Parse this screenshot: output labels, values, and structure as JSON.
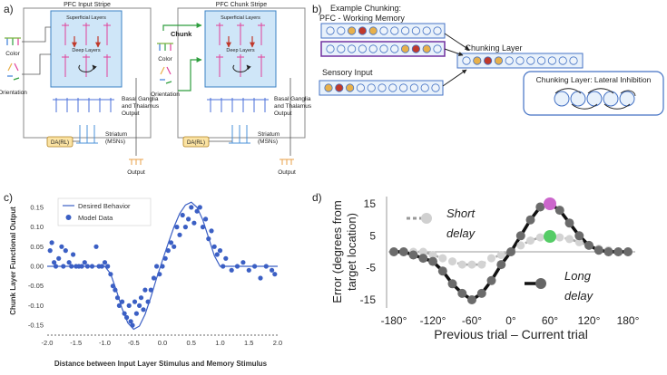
{
  "panel_a": {
    "label": "a)",
    "stripe1_title": "PFC Input Stripe",
    "stripe2_title": "PFC Chunk Stripe",
    "superficial": "Superficial Layers",
    "deep": "Deep Layers",
    "color": "Color",
    "orientation": "Orientation",
    "bg_line1": "Basal Ganglia",
    "bg_line2": "and Thalamus",
    "bg_line3": "Output",
    "striatum_line1": "Striatum",
    "striatum_line2": "(MSNs)",
    "da_box": "DA(RL)",
    "output": "Output",
    "chunk_label": "Chunk"
  },
  "panel_b": {
    "label": "b)",
    "title1": "Example Chunking:",
    "title2": "PFC - Working Memory",
    "chunking_layer": "Chunking Layer",
    "sensory_input": "Sensory Input",
    "lateral_inhibition": "Chunking Layer: Lateral Inhibition",
    "colors": {
      "blue": "#4472c4",
      "purple": "#7030a0",
      "dark_red": "#c0392b",
      "gold": "#e8b04a",
      "empty": "#eef4fb"
    }
  },
  "panel_c": {
    "label": "c)",
    "chart_data": {
      "type": "scatter",
      "xlabel": "Distance between Input Layer Stimulus and Memory Stimulus",
      "ylabel": "Chunk Layer Functional Output",
      "xlim": [
        -2.0,
        2.0
      ],
      "ylim": [
        -0.175,
        0.175
      ],
      "x_ticks": [
        "-2.0",
        "-1.5",
        "-1.0",
        "-0.5",
        "0.0",
        "0.5",
        "1.0",
        "1.5",
        "2.0"
      ],
      "y_ticks": [
        "-0.15",
        "-0.10",
        "-0.05",
        "0.00",
        "0.05",
        "0.10",
        "0.15"
      ],
      "legend": [
        "Desired Behavior",
        "Model Data"
      ],
      "desired_curve": {
        "x": [
          -2.0,
          -1.5,
          -1.0,
          -0.9,
          -0.8,
          -0.7,
          -0.6,
          -0.5,
          -0.4,
          -0.3,
          -0.2,
          -0.1,
          0.0,
          0.1,
          0.2,
          0.3,
          0.4,
          0.5,
          0.6,
          0.7,
          0.8,
          0.9,
          1.0,
          1.5,
          2.0
        ],
        "y": [
          0,
          0,
          0,
          -0.019,
          -0.061,
          -0.108,
          -0.144,
          -0.16,
          -0.152,
          -0.122,
          -0.078,
          -0.03,
          0.015,
          0.058,
          0.1,
          0.134,
          0.156,
          0.163,
          0.15,
          0.118,
          0.073,
          0.027,
          0,
          0,
          0
        ]
      },
      "points": {
        "x": [
          -1.95,
          -1.92,
          -1.88,
          -1.85,
          -1.8,
          -1.75,
          -1.72,
          -1.68,
          -1.62,
          -1.58,
          -1.55,
          -1.5,
          -1.45,
          -1.4,
          -1.35,
          -1.3,
          -1.22,
          -1.15,
          -1.1,
          -1.05,
          -1.0,
          -0.95,
          -0.9,
          -0.86,
          -0.82,
          -0.78,
          -0.75,
          -0.7,
          -0.66,
          -0.62,
          -0.58,
          -0.55,
          -0.52,
          -0.48,
          -0.45,
          -0.4,
          -0.37,
          -0.33,
          -0.3,
          -0.25,
          -0.2,
          -0.15,
          -0.1,
          -0.05,
          0.0,
          0.05,
          0.1,
          0.15,
          0.2,
          0.25,
          0.3,
          0.35,
          0.4,
          0.45,
          0.5,
          0.55,
          0.6,
          0.65,
          0.7,
          0.75,
          0.8,
          0.85,
          0.9,
          0.95,
          1.0,
          1.05,
          1.1,
          1.2,
          1.3,
          1.4,
          1.5,
          1.6,
          1.7,
          1.8,
          1.9,
          1.95
        ],
        "y": [
          0.04,
          0.06,
          0.01,
          0.0,
          0.02,
          0.05,
          0.0,
          0.04,
          0.01,
          0.0,
          0.03,
          0.0,
          0.0,
          0.0,
          0.01,
          0.0,
          0.0,
          0.05,
          0.0,
          0.0,
          0.01,
          0.0,
          -0.02,
          -0.05,
          -0.06,
          -0.08,
          -0.1,
          -0.09,
          -0.12,
          -0.13,
          -0.1,
          -0.14,
          -0.15,
          -0.09,
          -0.12,
          -0.1,
          -0.08,
          -0.11,
          -0.06,
          -0.09,
          -0.06,
          -0.03,
          0.0,
          -0.02,
          0.0,
          0.02,
          0.04,
          0.06,
          0.05,
          0.1,
          0.08,
          0.13,
          0.1,
          0.12,
          0.15,
          0.11,
          0.14,
          0.15,
          0.1,
          0.12,
          0.07,
          0.09,
          0.05,
          0.03,
          0.04,
          0.0,
          0.02,
          -0.01,
          0.0,
          0.01,
          -0.01,
          0.0,
          -0.03,
          0.0,
          -0.01,
          -0.02
        ]
      }
    }
  },
  "panel_d": {
    "label": "d)",
    "chart_data": {
      "type": "line",
      "xlabel": "Previous trial – Current trial",
      "ylabel_line1": "Error (degrees from",
      "ylabel_line2": "target location)",
      "xlim": [
        -180,
        180
      ],
      "ylim": [
        -15,
        15
      ],
      "x_ticks": [
        "-180°",
        "-120°",
        "-60°",
        "0°",
        "60°",
        "120°",
        "180°"
      ],
      "y_ticks": [
        "15",
        "5",
        "-5",
        "-15"
      ],
      "short_delay": {
        "name": "Short delay",
        "x": [
          -180,
          -165,
          -150,
          -135,
          -120,
          -105,
          -90,
          -75,
          -60,
          -45,
          -30,
          -15,
          0,
          15,
          30,
          45,
          60,
          75,
          90,
          105,
          120,
          135,
          150,
          165,
          180
        ],
        "y": [
          0,
          0,
          0,
          0,
          -1,
          -2,
          -3,
          -4,
          -4,
          -4,
          -2,
          -1,
          0,
          2,
          3.5,
          4.5,
          4.8,
          4.5,
          4,
          3,
          2,
          1,
          0.5,
          0,
          0
        ]
      },
      "long_delay": {
        "name": "Long delay",
        "x": [
          -180,
          -165,
          -150,
          -135,
          -120,
          -105,
          -90,
          -75,
          -60,
          -45,
          -30,
          -15,
          0,
          15,
          30,
          45,
          60,
          75,
          90,
          105,
          120,
          135,
          150,
          165,
          180
        ],
        "y": [
          0,
          0,
          -1,
          -2,
          -3,
          -6,
          -10,
          -13,
          -15,
          -13,
          -9,
          -4,
          0,
          5,
          10,
          14,
          15,
          13,
          9,
          5,
          2,
          0.5,
          0,
          0,
          0
        ]
      },
      "highlight_long": {
        "x": 60,
        "y": 15,
        "color": "#cc66cc"
      },
      "highlight_short": {
        "x": 60,
        "y": 4.8,
        "color": "#55cc66"
      },
      "short_label_line1": "Short",
      "short_label_line2": "delay",
      "long_label_line1": "Long",
      "long_label_line2": "delay"
    }
  }
}
